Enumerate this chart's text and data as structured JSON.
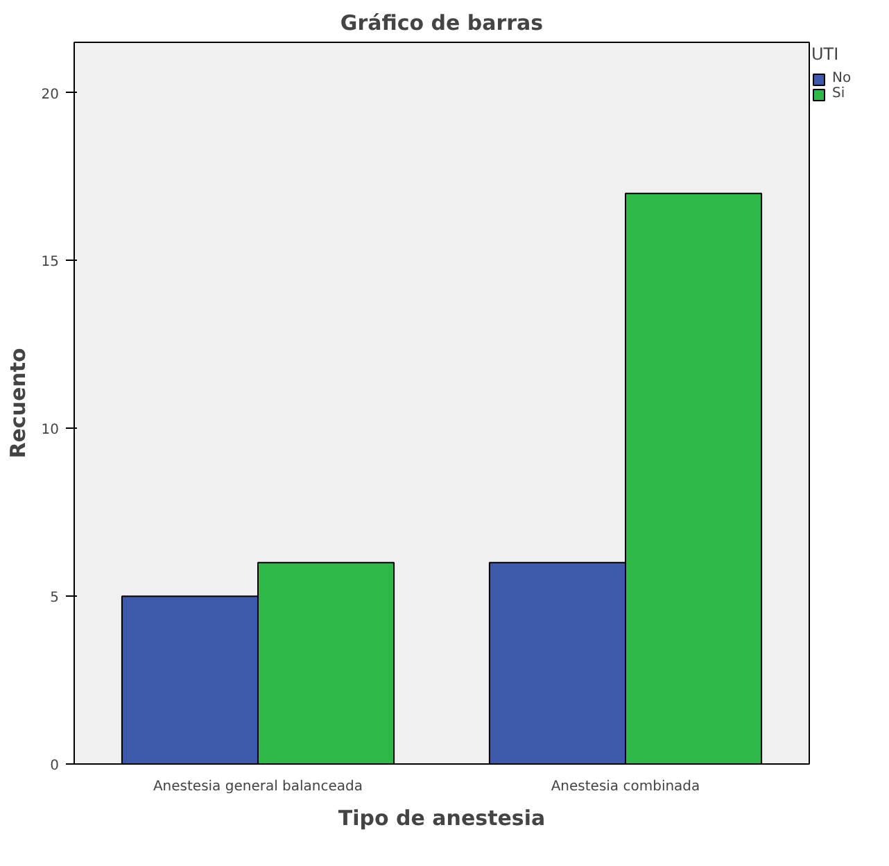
{
  "chart_data": {
    "type": "bar",
    "title": "Gráfico de barras",
    "xlabel": "Tipo de anestesia",
    "ylabel": "Recuento",
    "legend_title": "UTI",
    "categories": [
      "Anestesia general balanceada",
      "Anestesia combinada"
    ],
    "series": [
      {
        "name": "No",
        "color": "#3e58ac",
        "values": [
          5,
          6
        ]
      },
      {
        "name": "Si",
        "color": "#2eb848",
        "values": [
          6,
          17
        ]
      }
    ],
    "ylim": [
      0,
      21.5
    ],
    "yticks": [
      0,
      5,
      10,
      15,
      20
    ],
    "legend": "top right"
  }
}
